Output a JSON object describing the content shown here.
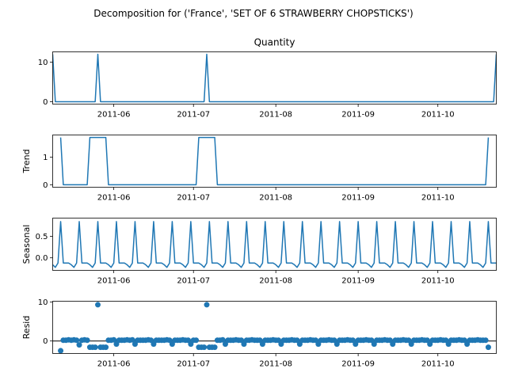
{
  "figure_title": "Decomposition for ('France', 'SET OF 6 STRAWBERRY CHOPSTICKS')",
  "colors": {
    "series": "#1f77b4",
    "axes": "#000000",
    "background": "#ffffff"
  },
  "chart_data": [
    {
      "type": "line",
      "panel": "observed",
      "title": "Quantity",
      "ylabel": "",
      "x_range": [
        "2011-05-09",
        "2011-10-23"
      ],
      "ylim": [
        -0.6,
        12.6
      ],
      "y_ticks": [
        0,
        10
      ],
      "x_ticks": [
        "2011-06-01",
        "2011-07-01",
        "2011-08-01",
        "2011-09-01",
        "2011-10-01"
      ],
      "x_tick_labels": [
        "2011-06",
        "2011-07",
        "2011-08",
        "2011-09",
        "2011-10"
      ],
      "grid": false,
      "series": [
        {
          "points": [
            [
              "2011-05-09",
              12
            ],
            [
              "2011-05-10",
              0
            ],
            [
              "2011-05-25",
              0
            ],
            [
              "2011-05-26",
              12
            ],
            [
              "2011-05-27",
              0
            ],
            [
              "2011-07-05",
              0
            ],
            [
              "2011-07-06",
              12
            ],
            [
              "2011-07-07",
              0
            ],
            [
              "2011-10-22",
              0
            ],
            [
              "2011-10-23",
              12
            ]
          ]
        }
      ]
    },
    {
      "type": "line",
      "panel": "trend",
      "title": "",
      "ylabel": "Trend",
      "x_range": [
        "2011-05-09",
        "2011-10-23"
      ],
      "ylim": [
        -0.09,
        1.8
      ],
      "y_ticks": [
        0,
        1
      ],
      "x_ticks": [
        "2011-06-01",
        "2011-07-01",
        "2011-08-01",
        "2011-09-01",
        "2011-10-01"
      ],
      "x_tick_labels": [
        "2011-06",
        "2011-07",
        "2011-08",
        "2011-09",
        "2011-10"
      ],
      "grid": false,
      "series": [
        {
          "points": [
            [
              "2011-05-12",
              1.71
            ],
            [
              "2011-05-13",
              0
            ],
            [
              "2011-05-22",
              0
            ],
            [
              "2011-05-23",
              1.71
            ],
            [
              "2011-05-29",
              1.71
            ],
            [
              "2011-05-30",
              0
            ],
            [
              "2011-07-02",
              0
            ],
            [
              "2011-07-03",
              1.71
            ],
            [
              "2011-07-09",
              1.71
            ],
            [
              "2011-07-10",
              0
            ],
            [
              "2011-10-19",
              0
            ],
            [
              "2011-10-20",
              1.71
            ]
          ]
        }
      ]
    },
    {
      "type": "line",
      "panel": "seasonal",
      "title": "",
      "ylabel": "Seasonal",
      "x_range": [
        "2011-05-09",
        "2011-10-23"
      ],
      "ylim": [
        -0.29,
        0.92
      ],
      "y_ticks": [
        0.0,
        0.5
      ],
      "y_tick_labels": [
        "0.0",
        "0.5"
      ],
      "x_ticks": [
        "2011-06-01",
        "2011-07-01",
        "2011-08-01",
        "2011-09-01",
        "2011-10-01"
      ],
      "x_tick_labels": [
        "2011-06",
        "2011-07",
        "2011-08",
        "2011-09",
        "2011-10"
      ],
      "grid": false,
      "period_days": 7,
      "weekly_pattern": [
        -0.16,
        -0.22,
        -0.12,
        0.84,
        -0.12,
        -0.12,
        -0.12
      ],
      "series": [
        {
          "start": "2011-05-09",
          "end": "2011-10-23"
        }
      ]
    },
    {
      "type": "scatter",
      "panel": "resid",
      "title": "",
      "ylabel": "Resid",
      "x_range": [
        "2011-05-09",
        "2011-10-23"
      ],
      "ylim": [
        -3.2,
        10.2
      ],
      "y_ticks": [
        0,
        10
      ],
      "x_ticks": [
        "2011-06-01",
        "2011-07-01",
        "2011-08-01",
        "2011-09-01",
        "2011-10-01"
      ],
      "x_tick_labels": [
        "2011-06",
        "2011-07",
        "2011-08",
        "2011-09",
        "2011-10"
      ],
      "grid": false,
      "baseline": 0,
      "series": [
        {
          "points": [
            [
              "2011-05-12",
              -2.5
            ],
            [
              "2011-05-13",
              0.2
            ],
            [
              "2011-05-14",
              0.2
            ],
            [
              "2011-05-15",
              0.3
            ],
            [
              "2011-05-16",
              0.2
            ],
            [
              "2011-05-17",
              0.3
            ],
            [
              "2011-05-18",
              0.2
            ],
            [
              "2011-05-19",
              -1.0
            ],
            [
              "2011-05-20",
              0.2
            ],
            [
              "2011-05-21",
              0.3
            ],
            [
              "2011-05-22",
              0.2
            ],
            [
              "2011-05-23",
              -1.6
            ],
            [
              "2011-05-24",
              -1.6
            ],
            [
              "2011-05-25",
              -1.6
            ],
            [
              "2011-05-26",
              9.3
            ],
            [
              "2011-05-27",
              -1.6
            ],
            [
              "2011-05-28",
              -1.6
            ],
            [
              "2011-05-29",
              -1.6
            ],
            [
              "2011-05-30",
              0.2
            ],
            [
              "2011-05-31",
              0.2
            ],
            [
              "2011-06-01",
              0.3
            ],
            [
              "2011-06-02",
              -0.8
            ],
            [
              "2011-06-03",
              0.2
            ],
            [
              "2011-06-04",
              0.2
            ],
            [
              "2011-06-05",
              0.2
            ],
            [
              "2011-06-06",
              0.3
            ],
            [
              "2011-06-07",
              0.2
            ],
            [
              "2011-06-08",
              0.3
            ],
            [
              "2011-06-09",
              -0.8
            ],
            [
              "2011-06-10",
              0.2
            ],
            [
              "2011-06-11",
              0.2
            ],
            [
              "2011-06-12",
              0.2
            ],
            [
              "2011-06-13",
              0.2
            ],
            [
              "2011-06-14",
              0.3
            ],
            [
              "2011-06-15",
              0.2
            ],
            [
              "2011-06-16",
              -0.8
            ],
            [
              "2011-06-17",
              0.2
            ],
            [
              "2011-06-18",
              0.2
            ],
            [
              "2011-06-19",
              0.2
            ],
            [
              "2011-06-20",
              0.2
            ],
            [
              "2011-06-21",
              0.3
            ],
            [
              "2011-06-22",
              0.2
            ],
            [
              "2011-06-23",
              -0.8
            ],
            [
              "2011-06-24",
              0.2
            ],
            [
              "2011-06-25",
              0.2
            ],
            [
              "2011-06-26",
              0.2
            ],
            [
              "2011-06-27",
              0.3
            ],
            [
              "2011-06-28",
              0.2
            ],
            [
              "2011-06-29",
              0.2
            ],
            [
              "2011-06-30",
              -0.8
            ],
            [
              "2011-07-01",
              0.2
            ],
            [
              "2011-07-02",
              0.2
            ],
            [
              "2011-07-03",
              -1.6
            ],
            [
              "2011-07-04",
              -1.6
            ],
            [
              "2011-07-05",
              -1.6
            ],
            [
              "2011-07-06",
              9.3
            ],
            [
              "2011-07-07",
              -1.6
            ],
            [
              "2011-07-08",
              -1.6
            ],
            [
              "2011-07-09",
              -1.6
            ],
            [
              "2011-07-10",
              0.2
            ],
            [
              "2011-07-11",
              0.2
            ],
            [
              "2011-07-12",
              0.3
            ],
            [
              "2011-07-13",
              -0.8
            ],
            [
              "2011-07-14",
              0.2
            ],
            [
              "2011-07-15",
              0.2
            ],
            [
              "2011-07-16",
              0.2
            ],
            [
              "2011-07-17",
              0.3
            ],
            [
              "2011-07-18",
              0.2
            ],
            [
              "2011-07-19",
              0.2
            ],
            [
              "2011-07-20",
              -0.8
            ],
            [
              "2011-07-21",
              0.2
            ],
            [
              "2011-07-22",
              0.2
            ],
            [
              "2011-07-23",
              0.3
            ],
            [
              "2011-07-24",
              0.2
            ],
            [
              "2011-07-25",
              0.2
            ],
            [
              "2011-07-26",
              0.2
            ],
            [
              "2011-07-27",
              -0.8
            ],
            [
              "2011-07-28",
              0.2
            ],
            [
              "2011-07-29",
              0.2
            ],
            [
              "2011-07-30",
              0.2
            ],
            [
              "2011-07-31",
              0.3
            ],
            [
              "2011-08-01",
              0.2
            ],
            [
              "2011-08-02",
              0.2
            ],
            [
              "2011-08-03",
              -0.8
            ],
            [
              "2011-08-04",
              0.2
            ],
            [
              "2011-08-05",
              0.2
            ],
            [
              "2011-08-06",
              0.2
            ],
            [
              "2011-08-07",
              0.3
            ],
            [
              "2011-08-08",
              0.2
            ],
            [
              "2011-08-09",
              0.2
            ],
            [
              "2011-08-10",
              -0.8
            ],
            [
              "2011-08-11",
              0.2
            ],
            [
              "2011-08-12",
              0.2
            ],
            [
              "2011-08-13",
              0.2
            ],
            [
              "2011-08-14",
              0.3
            ],
            [
              "2011-08-15",
              0.2
            ],
            [
              "2011-08-16",
              0.2
            ],
            [
              "2011-08-17",
              -0.8
            ],
            [
              "2011-08-18",
              0.2
            ],
            [
              "2011-08-19",
              0.2
            ],
            [
              "2011-08-20",
              0.2
            ],
            [
              "2011-08-21",
              0.3
            ],
            [
              "2011-08-22",
              0.2
            ],
            [
              "2011-08-23",
              0.2
            ],
            [
              "2011-08-24",
              -0.8
            ],
            [
              "2011-08-25",
              0.2
            ],
            [
              "2011-08-26",
              0.2
            ],
            [
              "2011-08-27",
              0.2
            ],
            [
              "2011-08-28",
              0.3
            ],
            [
              "2011-08-29",
              0.2
            ],
            [
              "2011-08-30",
              0.2
            ],
            [
              "2011-08-31",
              -0.8
            ],
            [
              "2011-09-01",
              0.2
            ],
            [
              "2011-09-02",
              0.2
            ],
            [
              "2011-09-03",
              0.2
            ],
            [
              "2011-09-04",
              0.3
            ],
            [
              "2011-09-05",
              0.2
            ],
            [
              "2011-09-06",
              0.2
            ],
            [
              "2011-09-07",
              -0.8
            ],
            [
              "2011-09-08",
              0.2
            ],
            [
              "2011-09-09",
              0.2
            ],
            [
              "2011-09-10",
              0.2
            ],
            [
              "2011-09-11",
              0.3
            ],
            [
              "2011-09-12",
              0.2
            ],
            [
              "2011-09-13",
              0.2
            ],
            [
              "2011-09-14",
              -0.8
            ],
            [
              "2011-09-15",
              0.2
            ],
            [
              "2011-09-16",
              0.2
            ],
            [
              "2011-09-17",
              0.2
            ],
            [
              "2011-09-18",
              0.3
            ],
            [
              "2011-09-19",
              0.2
            ],
            [
              "2011-09-20",
              0.2
            ],
            [
              "2011-09-21",
              -0.8
            ],
            [
              "2011-09-22",
              0.2
            ],
            [
              "2011-09-23",
              0.2
            ],
            [
              "2011-09-24",
              0.2
            ],
            [
              "2011-09-25",
              0.3
            ],
            [
              "2011-09-26",
              0.2
            ],
            [
              "2011-09-27",
              0.2
            ],
            [
              "2011-09-28",
              -0.8
            ],
            [
              "2011-09-29",
              0.2
            ],
            [
              "2011-09-30",
              0.2
            ],
            [
              "2011-10-01",
              0.2
            ],
            [
              "2011-10-02",
              0.3
            ],
            [
              "2011-10-03",
              0.2
            ],
            [
              "2011-10-04",
              0.2
            ],
            [
              "2011-10-05",
              -0.8
            ],
            [
              "2011-10-06",
              0.2
            ],
            [
              "2011-10-07",
              0.2
            ],
            [
              "2011-10-08",
              0.2
            ],
            [
              "2011-10-09",
              0.3
            ],
            [
              "2011-10-10",
              0.2
            ],
            [
              "2011-10-11",
              0.2
            ],
            [
              "2011-10-12",
              -0.8
            ],
            [
              "2011-10-13",
              0.2
            ],
            [
              "2011-10-14",
              0.2
            ],
            [
              "2011-10-15",
              0.2
            ],
            [
              "2011-10-16",
              0.3
            ],
            [
              "2011-10-17",
              0.2
            ],
            [
              "2011-10-18",
              0.2
            ],
            [
              "2011-10-19",
              0.2
            ],
            [
              "2011-10-20",
              -1.6
            ]
          ]
        }
      ]
    }
  ]
}
